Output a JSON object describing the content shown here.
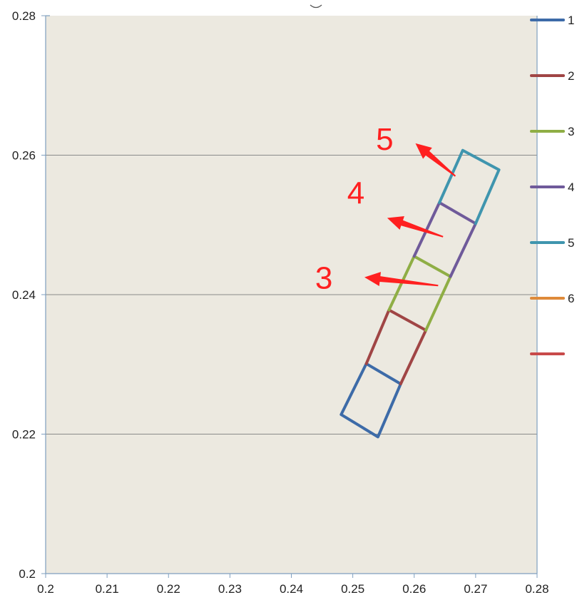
{
  "chart_data": {
    "type": "line",
    "title": "",
    "xlabel": "",
    "ylabel": "",
    "xlim": [
      0.2,
      0.28
    ],
    "ylim": [
      0.2,
      0.28
    ],
    "xticks": [
      "0.2",
      "0.21",
      "0.22",
      "0.23",
      "0.24",
      "0.25",
      "0.26",
      "0.27",
      "0.28"
    ],
    "yticks": [
      "0.2",
      "0.22",
      "0.24",
      "0.26",
      "0.28"
    ],
    "y_gridlines": [
      0.22,
      0.24,
      0.26
    ],
    "grid": "horizontal",
    "legend_position": "right",
    "colors": {
      "plot_background": "#ece9e0",
      "axis": "#7f9fbf",
      "grid": "#8a8a8a",
      "annotation": "#ff2020"
    },
    "series": [
      {
        "name": "1",
        "color": "#3d6ba8",
        "points": [
          [
            0.2522,
            0.2301
          ],
          [
            0.2481,
            0.2228
          ],
          [
            0.2541,
            0.2196
          ],
          [
            0.2578,
            0.2272
          ],
          [
            0.2522,
            0.2301
          ]
        ]
      },
      {
        "name": "2",
        "color": "#a04545",
        "points": [
          [
            0.2522,
            0.2301
          ],
          [
            0.2559,
            0.2378
          ],
          [
            0.2619,
            0.2349
          ],
          [
            0.2578,
            0.2272
          ]
        ]
      },
      {
        "name": "3",
        "color": "#8fae45",
        "points": [
          [
            0.2559,
            0.2378
          ],
          [
            0.26,
            0.2455
          ],
          [
            0.2659,
            0.2426
          ],
          [
            0.2619,
            0.2349
          ]
        ]
      },
      {
        "name": "4",
        "color": "#6f5a9a",
        "points": [
          [
            0.26,
            0.2455
          ],
          [
            0.2641,
            0.2532
          ],
          [
            0.27,
            0.2502
          ],
          [
            0.2659,
            0.2426
          ]
        ]
      },
      {
        "name": "5",
        "color": "#3f95ae",
        "points": [
          [
            0.2641,
            0.2532
          ],
          [
            0.2679,
            0.2607
          ],
          [
            0.2738,
            0.2579
          ],
          [
            0.27,
            0.2502
          ]
        ]
      },
      {
        "name": "6",
        "color": "#de8a3a",
        "points": []
      },
      {
        "name": "",
        "color": "#c84a4a",
        "points": []
      }
    ],
    "annotations": [
      {
        "text": "5",
        "label_at": [
          0.2552,
          0.2624
        ],
        "arrow_from": [
          0.2667,
          0.257
        ],
        "arrow_to": [
          0.2602,
          0.2617
        ]
      },
      {
        "text": "4",
        "label_at": [
          0.2505,
          0.2547
        ],
        "arrow_from": [
          0.2647,
          0.2483
        ],
        "arrow_to": [
          0.2556,
          0.251
        ]
      },
      {
        "text": "3",
        "label_at": [
          0.2453,
          0.2425
        ],
        "arrow_from": [
          0.2639,
          0.2413
        ],
        "arrow_to": [
          0.2519,
          0.2425
        ]
      }
    ]
  }
}
